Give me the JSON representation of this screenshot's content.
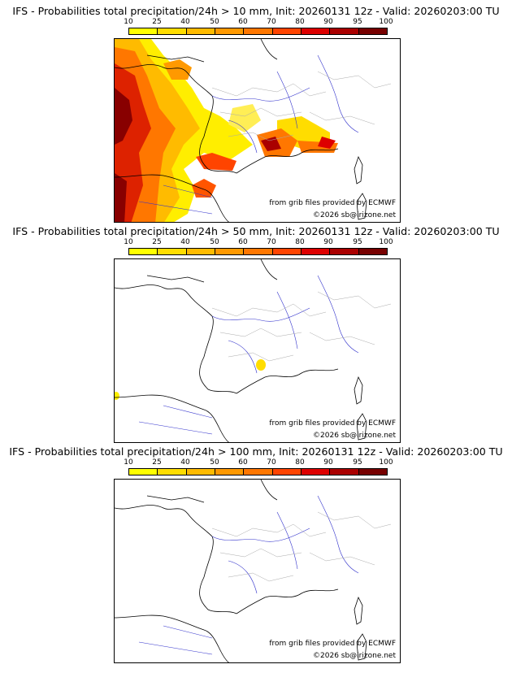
{
  "panels": [
    {
      "title": "IFS - Probabilities total precipitation/24h > 10 mm, Init: 20260131 12z - Valid: 20260203:00 TU"
    },
    {
      "title": "IFS - Probabilities total precipitation/24h > 50 mm, Init: 20260131 12z - Valid: 20260203:00 TU"
    },
    {
      "title": "IFS - Probabilities total precipitation/24h > 100 mm, Init: 20260131 12z - Valid: 20260203:00 TU"
    }
  ],
  "colorbar": {
    "ticks": [
      "10",
      "25",
      "40",
      "50",
      "60",
      "70",
      "80",
      "90",
      "95",
      "100"
    ],
    "colors": [
      "#ffff00",
      "#ffdd00",
      "#ffbb00",
      "#ff9900",
      "#ff7700",
      "#ff4400",
      "#dd0000",
      "#aa0000",
      "#770000"
    ]
  },
  "credits": {
    "source": "from grib files provided by ECMWF",
    "copyright": "©2026 sb@irizone.net"
  }
}
